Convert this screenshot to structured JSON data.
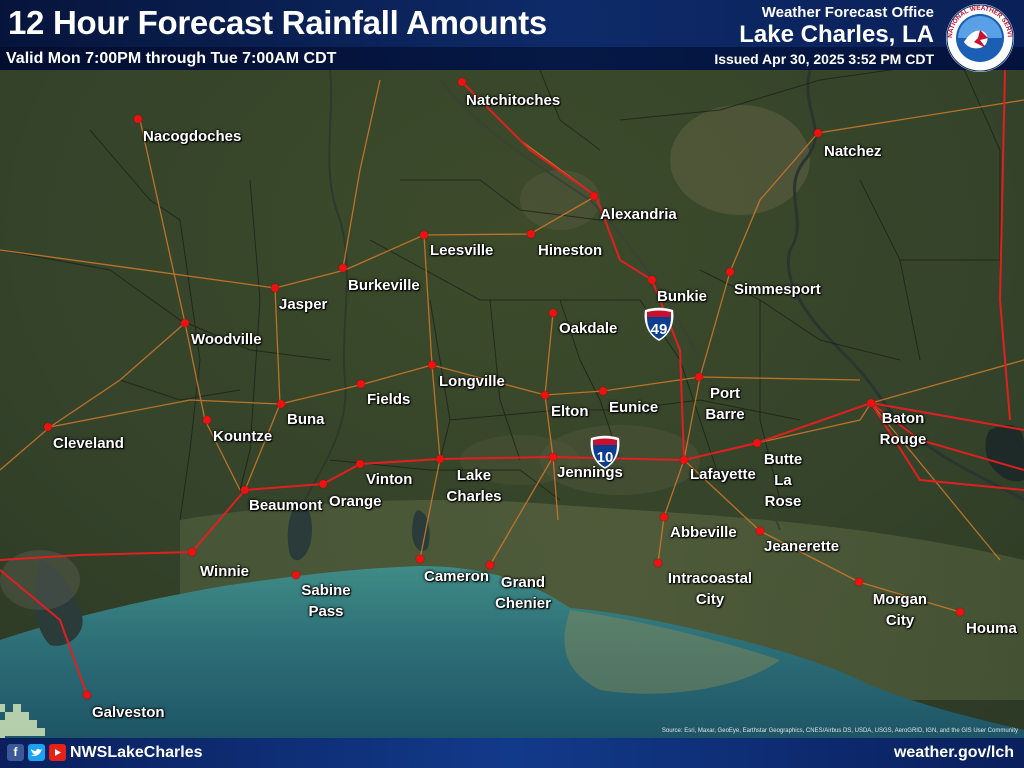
{
  "header": {
    "title": "12 Hour Forecast Rainfall Amounts",
    "valid": "Valid Mon 7:00PM through Tue 7:00AM CDT",
    "office_label": "Weather Forecast Office",
    "office_name": "Lake Charles, LA",
    "issued": "Issued Apr 30, 2025 3:52 PM CDT",
    "logo_text": "NATIONAL WEATHER SERVICE",
    "logo_icon": "nws-logo-icon"
  },
  "highways": [
    {
      "name": "49",
      "icon": "interstate-shield-icon"
    },
    {
      "name": "10",
      "icon": "interstate-shield-icon"
    }
  ],
  "cities": [
    {
      "name": "Natchitoches"
    },
    {
      "name": "Nacogdoches"
    },
    {
      "name": "Natchez"
    },
    {
      "name": "Alexandria"
    },
    {
      "name": "Leesville"
    },
    {
      "name": "Hineston"
    },
    {
      "name": "Burkeville"
    },
    {
      "name": "Simmesport"
    },
    {
      "name": "Jasper"
    },
    {
      "name": "Bunkie"
    },
    {
      "name": "Oakdale"
    },
    {
      "name": "Woodville"
    },
    {
      "name": "Longville"
    },
    {
      "name": "Fields"
    },
    {
      "name": "Port Barre"
    },
    {
      "name": "Buna"
    },
    {
      "name": "Eunice"
    },
    {
      "name": "Elton"
    },
    {
      "name": "Baton Rouge"
    },
    {
      "name": "Kountze"
    },
    {
      "name": "Cleveland"
    },
    {
      "name": "Butte La Rose"
    },
    {
      "name": "Jennings"
    },
    {
      "name": "Lafayette"
    },
    {
      "name": "Vinton"
    },
    {
      "name": "Lake Charles"
    },
    {
      "name": "Orange"
    },
    {
      "name": "Beaumont"
    },
    {
      "name": "Abbeville"
    },
    {
      "name": "Jeanerette"
    },
    {
      "name": "Winnie"
    },
    {
      "name": "Cameron"
    },
    {
      "name": "Grand Chenier"
    },
    {
      "name": "Intracoastal City"
    },
    {
      "name": "Sabine Pass"
    },
    {
      "name": "Morgan City"
    },
    {
      "name": "Houma"
    },
    {
      "name": "Galveston"
    }
  ],
  "credit": "Source: Esri, Maxar, GeoEye, Earthstar Geographics, CNES/Airbus DS, USDA, USGS, AeroGRID, IGN, and the GIS User Community",
  "footer": {
    "social_icons": [
      "facebook-icon",
      "twitter-icon",
      "youtube-icon"
    ],
    "handle": "NWSLakeCharles",
    "site": "weather.gov/lch"
  },
  "colors": {
    "header": "#0a2a78",
    "city_dot": "#ee1111",
    "interstate": "#e02020",
    "highway": "#d27a2a",
    "land": "#3a4a2a",
    "gulf": "#2c6f7a"
  }
}
